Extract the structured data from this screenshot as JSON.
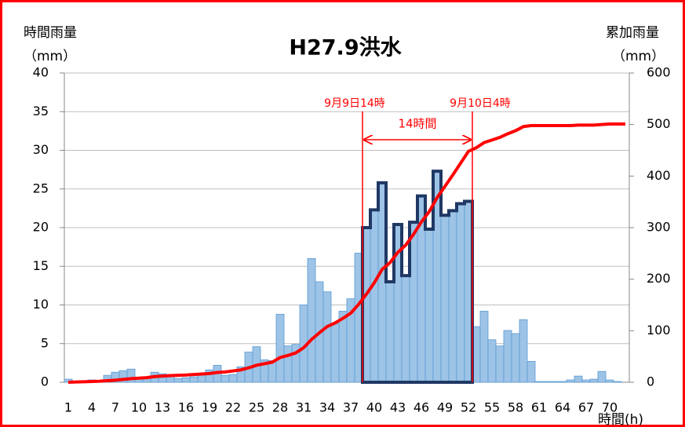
{
  "chart_data": {
    "type": "bar",
    "title": "H27.9洪水",
    "ylabel": [
      "時間雨量",
      "（mm）"
    ],
    "y2label": [
      "累加雨量",
      "（mm）"
    ],
    "xlabel": "時間(h)",
    "categories": [
      "1",
      null,
      null,
      "4",
      null,
      null,
      "7",
      null,
      null,
      "10",
      null,
      null,
      "13",
      null,
      null,
      "16",
      null,
      null,
      "19",
      null,
      null,
      "22",
      null,
      null,
      "25",
      null,
      null,
      "28",
      null,
      null,
      "31",
      null,
      null,
      "34",
      null,
      null,
      "37",
      null,
      null,
      "40",
      null,
      null,
      "43",
      null,
      null,
      "46",
      null,
      null,
      "49",
      null,
      null,
      "52",
      null,
      null,
      "55",
      null,
      null,
      "58",
      null,
      null,
      "61",
      null,
      null,
      "64",
      null,
      null,
      "67",
      null,
      null,
      "70",
      null,
      null
    ],
    "series": [
      {
        "name": "時間雨量",
        "color": "#9dc3e6",
        "values": [
          0.4,
          0.1,
          0.1,
          0.3,
          0.2,
          0.9,
          1.3,
          1.5,
          1.7,
          0.6,
          0.7,
          1.3,
          1.1,
          0.8,
          0.5,
          0.6,
          0.7,
          1.0,
          1.6,
          2.2,
          0.9,
          1.0,
          2.0,
          3.9,
          4.6,
          2.9,
          2.8,
          8.8,
          4.7,
          4.9,
          10.0,
          16.0,
          13.0,
          11.7,
          7.6,
          9.2,
          10.8,
          16.7,
          20.0,
          22.3,
          25.8,
          13.0,
          20.4,
          13.8,
          20.7,
          24.1,
          19.8,
          27.3,
          21.6,
          22.2,
          23.1,
          23.4,
          7.2,
          9.2,
          5.5,
          4.7,
          6.7,
          6.3,
          8.1,
          2.7,
          0.1,
          0.1,
          0.1,
          0.1,
          0.3,
          0.8,
          0.3,
          0.4,
          1.4,
          0.3,
          0.1,
          0
        ]
      },
      {
        "name": "累加雨量",
        "color": "#ff0000",
        "type": "line",
        "axis": "y2",
        "values": [
          0,
          0.5,
          1,
          1.5,
          2,
          3,
          4,
          5.5,
          7,
          8,
          9,
          11,
          12,
          13,
          13.5,
          14,
          15,
          16,
          17,
          19,
          20,
          22,
          24,
          28,
          33,
          36,
          39,
          48,
          52,
          57,
          67,
          83,
          96,
          108,
          115,
          124,
          134,
          151,
          171,
          193,
          219,
          232,
          252,
          266,
          287,
          311,
          331,
          358,
          380,
          402,
          425,
          448,
          455,
          465,
          470,
          475,
          482,
          488,
          496,
          498,
          498,
          498,
          498,
          498,
          498,
          499,
          499,
          499,
          500,
          501,
          501,
          501
        ]
      }
    ],
    "ylim": [
      0,
      40
    ],
    "yticks": [
      0,
      5,
      10,
      15,
      20,
      25,
      30,
      35,
      40
    ],
    "y2lim": [
      0,
      600
    ],
    "y2ticks": [
      0,
      100,
      200,
      300,
      400,
      500,
      600
    ],
    "grid": true,
    "annotations": [
      {
        "text": "9月9日14時",
        "x": 38.5
      },
      {
        "text": "9月10日4時",
        "x": 52.5
      }
    ],
    "span_label": "14時間",
    "highlight_color": "#1f3864"
  }
}
